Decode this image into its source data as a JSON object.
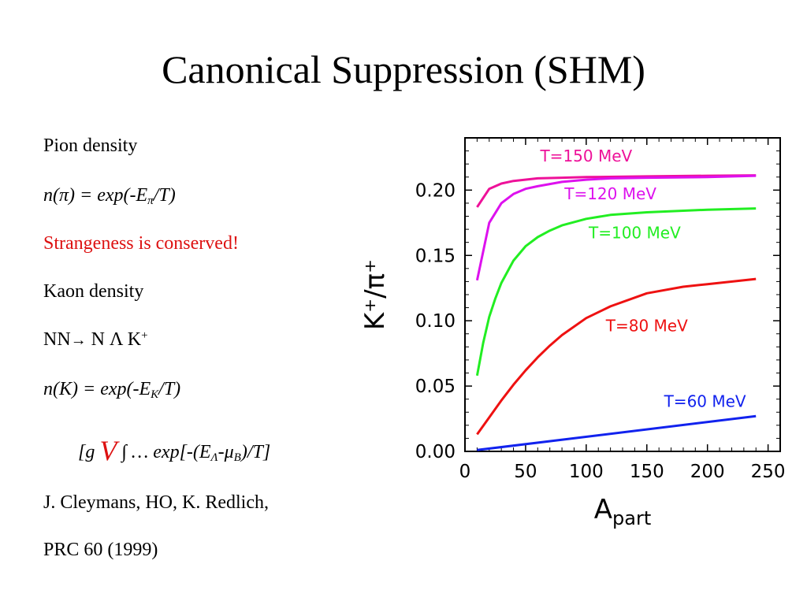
{
  "slide": {
    "title": "Canonical Suppression (SHM)"
  },
  "text": {
    "pion_heading": "Pion density",
    "pion_formula_pre": "n(π) = exp(-E",
    "pion_formula_sub": "π",
    "pion_formula_post": "/T)",
    "conservation": "Strangeness is conserved!",
    "kaon_heading": "Kaon density",
    "reaction_left": "NN",
    "reaction_arrow": "→",
    "reaction_right": " N Λ K",
    "reaction_sup": "+",
    "kaon_formula_pre": "n(K) = exp(-E",
    "kaon_formula_sub": "K",
    "kaon_formula_post": "/T)",
    "integral_pre": "[g ",
    "integral_V": "V",
    "integral_mid": "  ∫ … exp[-(E",
    "integral_sub1": "Λ",
    "integral_mid2": "-μ",
    "integral_sub2": "B",
    "integral_post": ")/T]",
    "citation_1": "J. Cleymans, HO, K. Redlich,",
    "citation_2": "PRC 60 (1999)"
  },
  "chart_data": {
    "type": "line",
    "xlabel_main": "A",
    "xlabel_sub": "part",
    "ylabel": "K⁺/π⁺",
    "xlim": [
      0,
      260
    ],
    "ylim": [
      0,
      0.24
    ],
    "x_ticks": [
      0,
      50,
      100,
      150,
      200,
      250
    ],
    "x_tick_labels": [
      "0",
      "50",
      "100",
      "150",
      "200",
      "250"
    ],
    "y_ticks": [
      0.0,
      0.05,
      0.1,
      0.15,
      0.2
    ],
    "y_tick_labels": [
      "0.00",
      "0.05",
      "0.10",
      "0.15",
      "0.20"
    ],
    "grid": false,
    "series": [
      {
        "name": "T=150  MeV",
        "color": "#ee1199",
        "x": [
          10,
          20,
          30,
          40,
          60,
          80,
          100,
          150,
          200,
          240
        ],
        "y": [
          0.187,
          0.201,
          0.205,
          0.207,
          0.209,
          0.2095,
          0.21,
          0.2105,
          0.211,
          0.2113
        ],
        "label_x": 100,
        "label_y": 0.222
      },
      {
        "name": "T=120  MeV",
        "color": "#dd11ee",
        "x": [
          10,
          20,
          30,
          40,
          50,
          60,
          80,
          100,
          120,
          150,
          200,
          240
        ],
        "y": [
          0.131,
          0.175,
          0.19,
          0.197,
          0.201,
          0.203,
          0.2063,
          0.208,
          0.209,
          0.2095,
          0.21,
          0.211
        ],
        "label_x": 120,
        "label_y": 0.193
      },
      {
        "name": "T=100  MeV",
        "color": "#22ee22",
        "x": [
          10,
          15,
          20,
          25,
          30,
          40,
          50,
          60,
          70,
          80,
          100,
          120,
          150,
          200,
          240
        ],
        "y": [
          0.058,
          0.083,
          0.103,
          0.117,
          0.129,
          0.146,
          0.157,
          0.164,
          0.169,
          0.173,
          0.178,
          0.181,
          0.183,
          0.185,
          0.186
        ],
        "label_x": 140,
        "label_y": 0.163
      },
      {
        "name": "T=80  MeV",
        "color": "#ee1111",
        "x": [
          10,
          20,
          30,
          40,
          50,
          60,
          70,
          80,
          100,
          120,
          150,
          180,
          200,
          240
        ],
        "y": [
          0.013,
          0.026,
          0.039,
          0.051,
          0.062,
          0.072,
          0.081,
          0.089,
          0.102,
          0.111,
          0.121,
          0.126,
          0.128,
          0.132
        ],
        "label_x": 150,
        "label_y": 0.092
      },
      {
        "name": "T=60  MeV",
        "color": "#1122ee",
        "x": [
          10,
          240
        ],
        "y": [
          0.001,
          0.027
        ],
        "label_x": 198,
        "label_y": 0.034
      }
    ]
  }
}
